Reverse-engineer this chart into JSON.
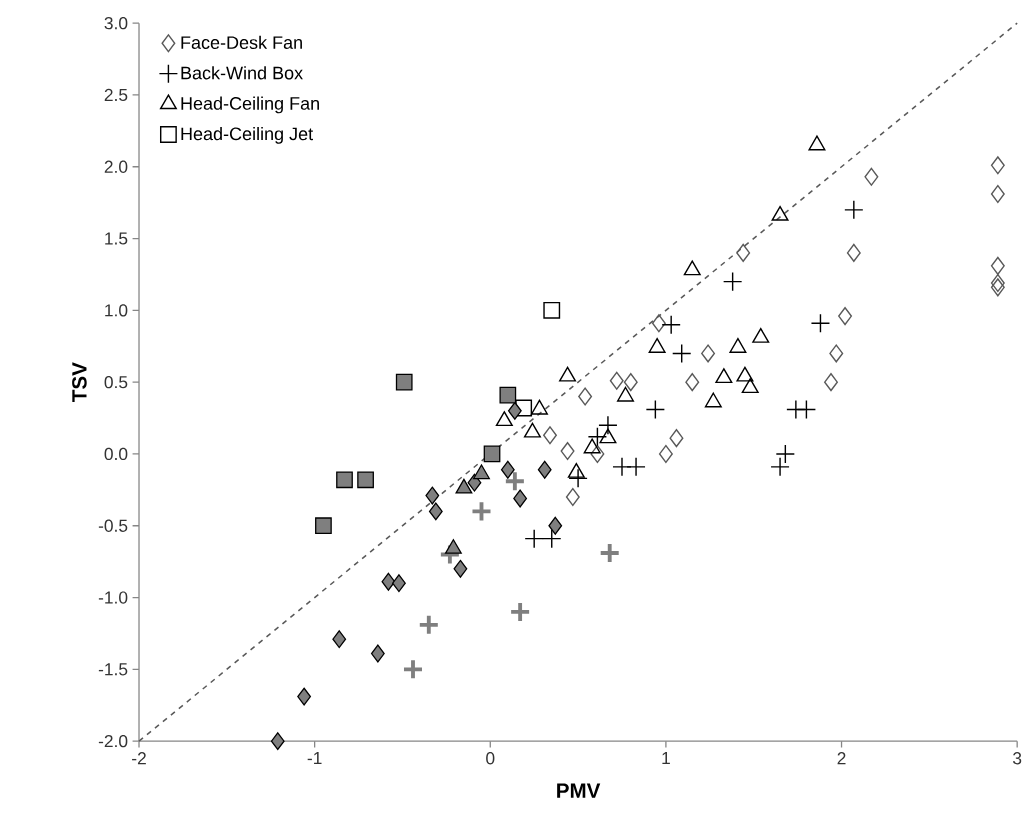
{
  "chart_data": {
    "type": "scatter",
    "xlabel": "PMV",
    "ylabel": "TSV",
    "xlim": [
      -2,
      3
    ],
    "ylim": [
      -2,
      3
    ],
    "xticks": [
      -2,
      -1,
      0,
      1,
      2,
      3
    ],
    "yticks": [
      {
        "value": -2,
        "label": "-2.0"
      },
      {
        "value": -1.5,
        "label": "-1.5"
      },
      {
        "value": -1,
        "label": "-1.0"
      },
      {
        "value": -0.5,
        "label": "-0.5"
      },
      {
        "value": 0,
        "label": "0.0"
      },
      {
        "value": 0.5,
        "label": "0.5"
      },
      {
        "value": 1,
        "label": "1.0"
      },
      {
        "value": 1.5,
        "label": "1.5"
      },
      {
        "value": 2,
        "label": "2.0"
      },
      {
        "value": 2.5,
        "label": "2.5"
      },
      {
        "value": 3,
        "label": "3.0"
      }
    ],
    "legend": "top left",
    "series": [
      {
        "type": "line",
        "color": "#595959",
        "line_style": "dashed",
        "marker": "none",
        "x": [
          -2,
          3
        ],
        "values": [
          -2,
          3
        ]
      },
      {
        "name": "Face-Desk Fan",
        "color": "#595959",
        "marker": "diamond",
        "x": [
          2.89,
          2.89,
          2.89,
          2.89,
          2.89,
          2.17,
          2.07,
          1.44,
          2.02,
          1.97,
          1.94,
          1.24,
          1.15,
          0.96,
          0.72,
          0.8,
          0.54,
          0.34,
          0.44,
          0.61,
          1.06,
          1.0,
          0.47
        ],
        "values": [
          2.01,
          1.81,
          1.31,
          1.19,
          1.16,
          1.93,
          1.4,
          1.4,
          0.96,
          0.7,
          0.5,
          0.7,
          0.5,
          0.91,
          0.51,
          0.5,
          0.4,
          0.13,
          0.02,
          0.0,
          0.11,
          0.0,
          -0.3
        ]
      },
      {
        "name": "Back-Wind Box",
        "color": "#000000",
        "marker": "cross",
        "x": [
          2.07,
          1.38,
          1.88,
          1.74,
          1.8,
          1.68,
          1.65,
          1.03,
          1.09,
          0.94,
          0.67,
          0.61,
          0.75,
          0.83,
          0.5,
          0.25,
          0.35
        ],
        "values": [
          1.7,
          1.2,
          0.91,
          0.31,
          0.31,
          0.0,
          -0.09,
          0.9,
          0.7,
          0.31,
          0.2,
          0.12,
          -0.09,
          -0.09,
          -0.17,
          -0.59,
          -0.59
        ]
      },
      {
        "name": "Head-Ceiling Fan",
        "color": "#000000",
        "marker": "triangle",
        "x": [
          1.86,
          1.65,
          1.15,
          1.41,
          1.54,
          1.33,
          1.45,
          1.48,
          1.27,
          0.95,
          0.44,
          0.77,
          0.28,
          0.08,
          0.24,
          0.49,
          0.58,
          0.67
        ],
        "values": [
          2.15,
          1.66,
          1.28,
          0.74,
          0.81,
          0.53,
          0.54,
          0.46,
          0.36,
          0.74,
          0.54,
          0.4,
          0.31,
          0.23,
          0.15,
          -0.13,
          0.04,
          0.11
        ]
      },
      {
        "name": "Head-Ceiling Jet",
        "color": "#000000",
        "marker": "square",
        "x": [
          0.35,
          0.19
        ],
        "values": [
          1.0,
          0.32
        ]
      },
      {
        "color": "#7f7f7f",
        "marker": "diamond",
        "x": [
          -1.21,
          -1.06,
          -0.86,
          -0.64,
          -0.58,
          -0.52,
          -0.17,
          -0.33,
          -0.31,
          -0.09,
          0.14,
          0.1,
          0.17,
          0.31,
          0.37
        ],
        "values": [
          -2.0,
          -1.69,
          -1.29,
          -1.39,
          -0.89,
          -0.9,
          -0.8,
          -0.29,
          -0.4,
          -0.2,
          0.3,
          -0.11,
          -0.31,
          -0.11,
          -0.5
        ]
      },
      {
        "color": "#7f7f7f",
        "marker": "cross",
        "x": [
          -0.44,
          -0.35,
          -0.23,
          -0.05,
          0.14,
          0.17,
          0.68
        ],
        "values": [
          -1.5,
          -1.19,
          -0.7,
          -0.4,
          -0.19,
          -1.1,
          -0.69
        ]
      },
      {
        "color": "#7f7f7f",
        "marker": "triangle",
        "x": [
          -0.15,
          -0.05,
          -0.21
        ],
        "values": [
          -0.24,
          -0.14,
          -0.66
        ]
      },
      {
        "color": "#7f7f7f",
        "marker": "square",
        "x": [
          -0.95,
          -0.83,
          -0.71,
          -0.49,
          0.01,
          0.1
        ],
        "values": [
          -0.5,
          -0.18,
          -0.18,
          0.5,
          0.0,
          0.41
        ]
      }
    ]
  }
}
